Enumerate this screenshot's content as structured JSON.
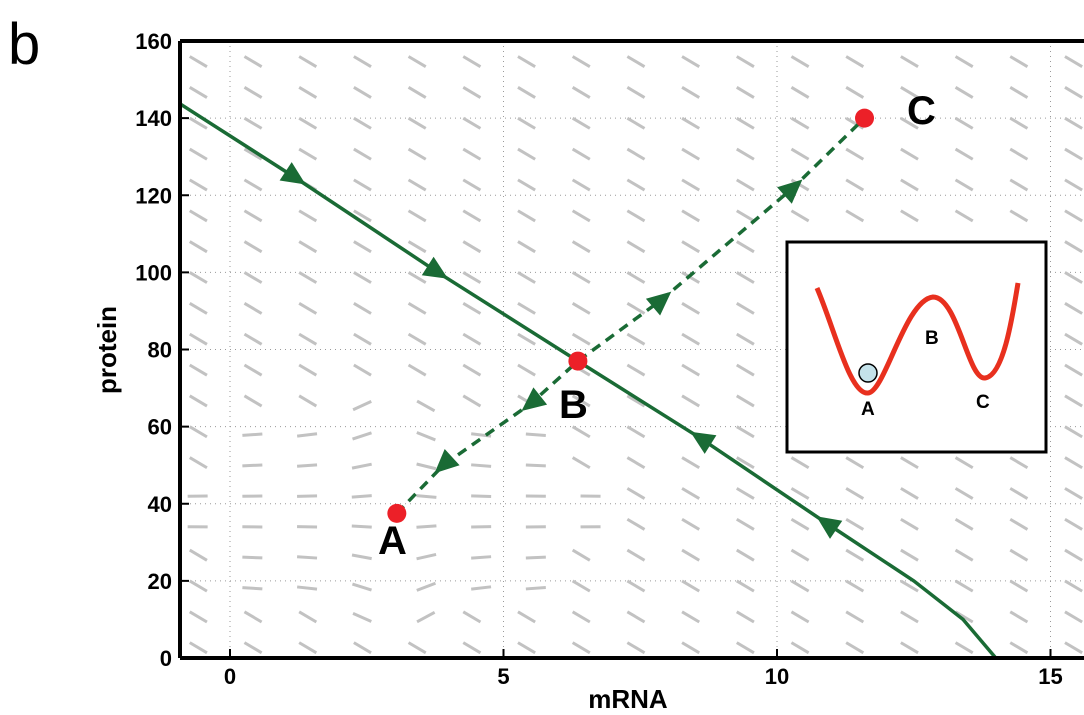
{
  "panel_label": "b",
  "chart_data": {
    "type": "line",
    "xlabel": "mRNA",
    "ylabel": "protein",
    "xlim": [
      -1,
      15.5
    ],
    "ylim": [
      0,
      160
    ],
    "xticks": [
      0,
      5,
      10,
      15
    ],
    "yticks": [
      0,
      20,
      40,
      60,
      80,
      100,
      120,
      140,
      160
    ],
    "grid": true,
    "series": [
      {
        "style": "solid",
        "color": "#1a6b35",
        "x": [
          -1,
          1.2,
          3.8,
          6.36,
          8.6,
          10.9,
          12.5,
          13.4,
          14.0
        ],
        "y": [
          144.5,
          124.5,
          100,
          77,
          57,
          35,
          20,
          10,
          0
        ]
      },
      {
        "style": "dashed",
        "color": "#1a6b35",
        "x": [
          3.05,
          3.9,
          5.5,
          6.36,
          7.9,
          10.3,
          11.6
        ],
        "y": [
          37.5,
          50,
          66,
          77,
          93,
          122,
          140
        ]
      }
    ],
    "fixed_points": [
      {
        "label": "A",
        "x": 3.05,
        "y": 37.5
      },
      {
        "label": "B",
        "x": 6.36,
        "y": 77
      },
      {
        "label": "C",
        "x": 11.6,
        "y": 140
      }
    ],
    "annotations": [
      "A",
      "B",
      "C"
    ],
    "inset": {
      "labels": [
        "A",
        "B",
        "C"
      ]
    }
  }
}
